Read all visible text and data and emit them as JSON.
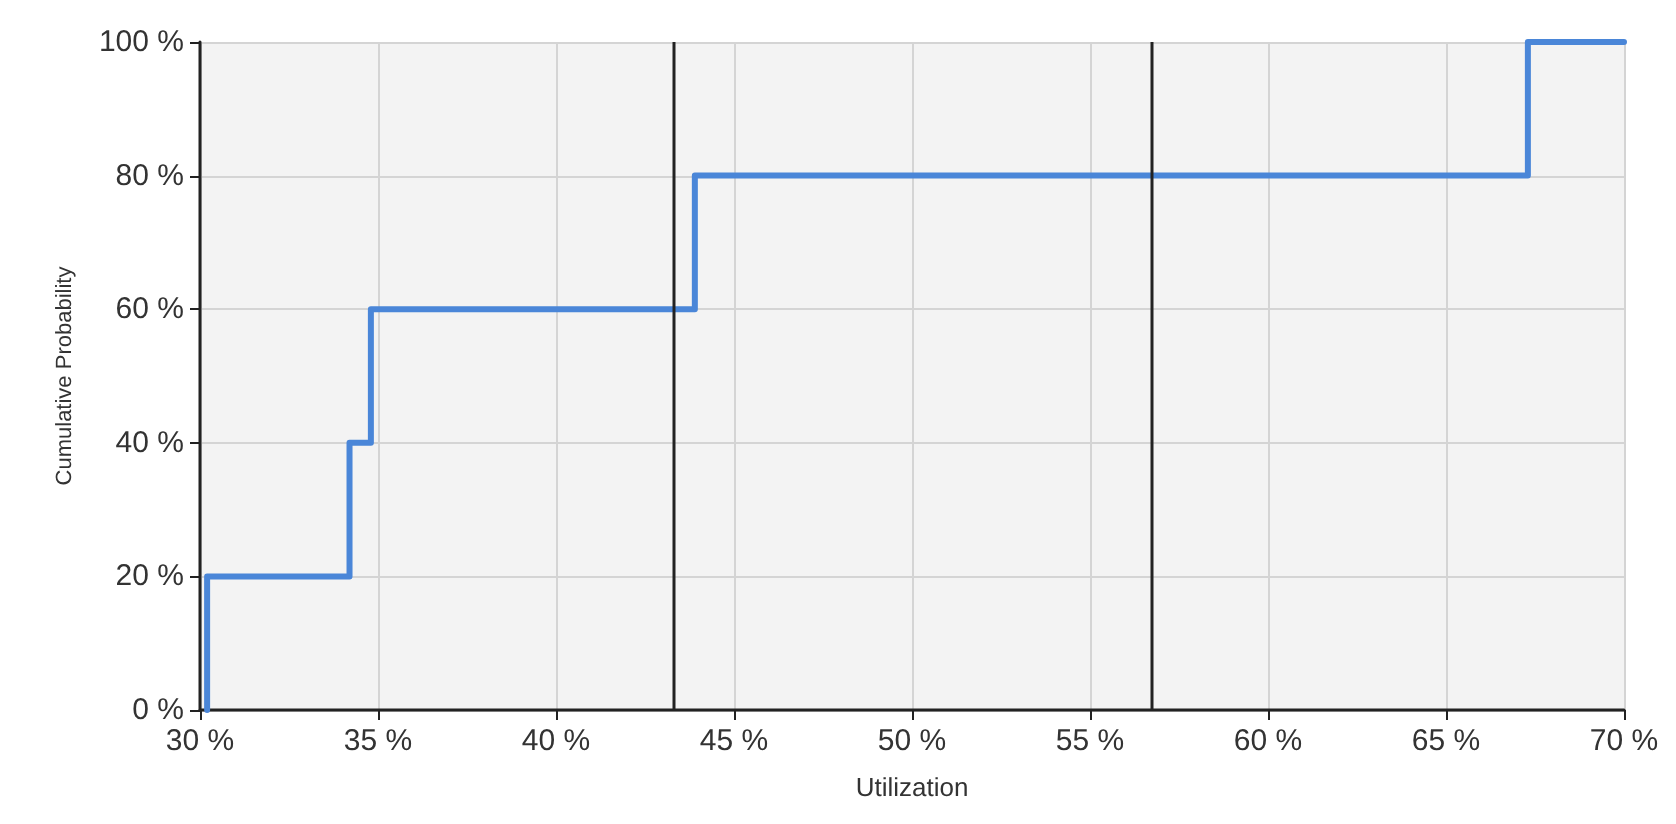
{
  "chart_data": {
    "type": "step",
    "xlabel": "Utilization",
    "ylabel": "Cumulative Probability",
    "series": [
      {
        "color": "#4a86d8",
        "x": [
          30.2,
          30.2,
          34.2,
          34.8,
          43.9,
          67.3,
          70
        ],
        "values": [
          0,
          20,
          40,
          60,
          80,
          100,
          100
        ]
      }
    ],
    "xlim": [
      30,
      70
    ],
    "xticks": [
      {
        "value": 30,
        "label": "30 %"
      },
      {
        "value": 35,
        "label": "35 %"
      },
      {
        "value": 40,
        "label": "40 %"
      },
      {
        "value": 45,
        "label": "45 %"
      },
      {
        "value": 50,
        "label": "50 %"
      },
      {
        "value": 55,
        "label": "55 %"
      },
      {
        "value": 60,
        "label": "60 %"
      },
      {
        "value": 65,
        "label": "65 %"
      },
      {
        "value": 70,
        "label": "70 %"
      }
    ],
    "ylim": [
      0,
      100
    ],
    "yticks": [
      {
        "value": 0,
        "label": "0 %"
      },
      {
        "value": 20,
        "label": "20 %"
      },
      {
        "value": 40,
        "label": "40 %"
      },
      {
        "value": 60,
        "label": "60 %"
      },
      {
        "value": 80,
        "label": "80 %"
      },
      {
        "value": 100,
        "label": "100 %"
      }
    ],
    "ref_lines": [
      {
        "axis": "x",
        "value": 43.3,
        "color": "#222222"
      },
      {
        "axis": "x",
        "value": 56.7,
        "color": "#222222"
      }
    ],
    "grid": true,
    "marker": "none",
    "line_style": "solid"
  }
}
